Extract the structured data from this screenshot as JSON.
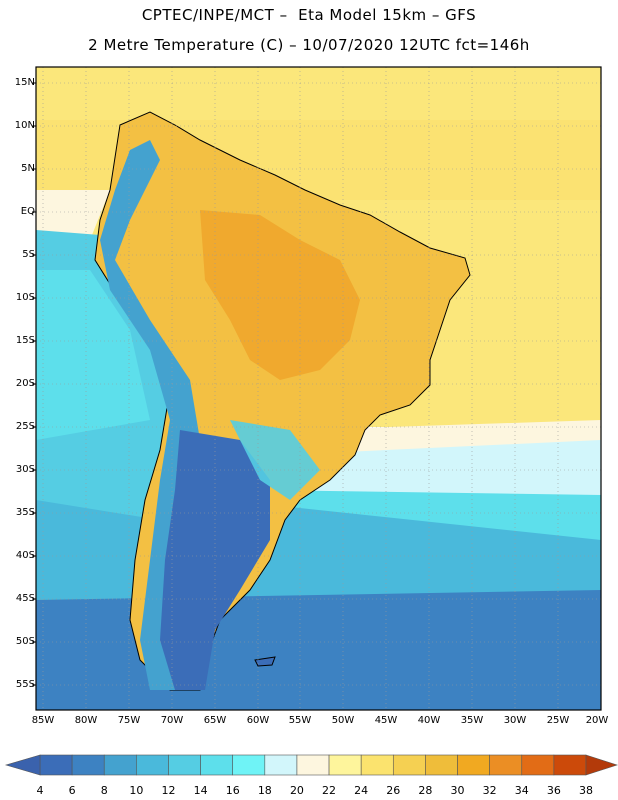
{
  "header": {
    "line1": "CPTEC/INPE/MCT –  Eta Model 15km – GFS",
    "line2": "2 Metre Temperature (C) – 10/07/2020 12UTC fct=146h"
  },
  "map": {
    "lat_labels": [
      "15N",
      "10N",
      "5N",
      "EQ",
      "5S",
      "10S",
      "15S",
      "20S",
      "25S",
      "30S",
      "35S",
      "40S",
      "45S",
      "50S",
      "55S"
    ],
    "lon_labels": [
      "85W",
      "80W",
      "75W",
      "70W",
      "65W",
      "60W",
      "55W",
      "50W",
      "45W",
      "40W",
      "35W",
      "30W",
      "25W",
      "20W"
    ],
    "ocean_color": "#fbe77b",
    "land_outline_color": "#000000"
  },
  "colorbar": {
    "labels": [
      "4",
      "6",
      "8",
      "10",
      "12",
      "14",
      "16",
      "18",
      "20",
      "22",
      "24",
      "26",
      "28",
      "30",
      "32",
      "34",
      "36",
      "38"
    ],
    "colors": [
      "#3b6db8",
      "#3d82c2",
      "#44a2cf",
      "#4ab9db",
      "#55cde3",
      "#5ddfeb",
      "#6ff3f6",
      "#d2f6fb",
      "#fdf6df",
      "#fef59c",
      "#fbe36e",
      "#f5d052",
      "#efbd3a",
      "#f1a921",
      "#eb8e24",
      "#e26c16",
      "#cc4a0a"
    ],
    "left_arrow_color": "#3a62ad",
    "right_arrow_color": "#b33a0a"
  }
}
